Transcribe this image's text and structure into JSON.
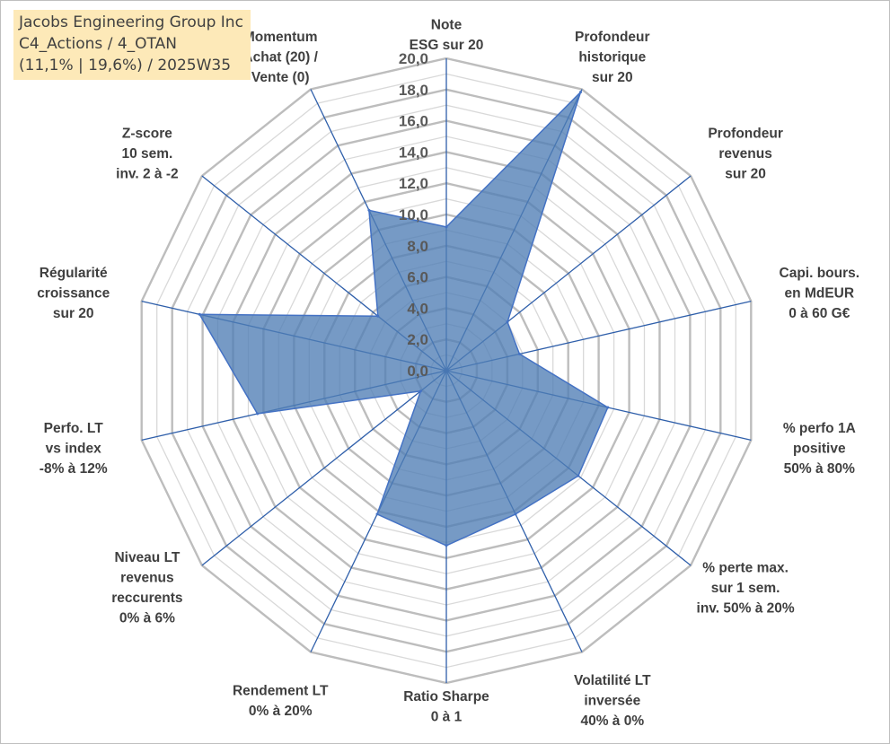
{
  "title_box": {
    "line1": "Jacobs Engineering Group Inc",
    "line2": "C4_Actions / 4_OTAN",
    "line3": "(11,1% | 19,6%) / 2025W35"
  },
  "colors": {
    "series_fill": "#4f7db5",
    "series_stroke": "#4472c4",
    "spoke": "#2f5faa",
    "ring_major": "#bdbdbd",
    "ring_minor": "#d9d9d9",
    "tick_text": "#595959",
    "label_text": "#3f3f3f",
    "title_bg": "#fde9b8"
  },
  "chart_data": {
    "type": "radar",
    "rmin": 0,
    "rmax": 20,
    "major_step": 2,
    "minor_step": 1,
    "tick_labels": [
      "0,0",
      "2,0",
      "4,0",
      "6,0",
      "8,0",
      "10,0",
      "12,0",
      "14,0",
      "16,0",
      "18,0",
      "20,0"
    ],
    "axes": [
      {
        "label": [
          "Note",
          "ESG sur 20"
        ],
        "value": 9.2
      },
      {
        "label": [
          "Profondeur",
          "historique",
          "sur 20"
        ],
        "value": 19.8
      },
      {
        "label": [
          "Profondeur",
          "revenus",
          "sur 20"
        ],
        "value": 5.0
      },
      {
        "label": [
          "Capi. bours.",
          "en MdEUR",
          "0 à 60 G€"
        ],
        "value": 4.8
      },
      {
        "label": [
          "% perfo 1A",
          "positive",
          "50% à 80%"
        ],
        "value": 10.6
      },
      {
        "label": [
          "% perte max.",
          "sur 1 sem.",
          "inv. 50% à 20%"
        ],
        "value": 10.8
      },
      {
        "label": [
          "Volatilité LT",
          "inversée",
          "40% à 0%"
        ],
        "value": 10.2
      },
      {
        "label": [
          "Ratio Sharpe",
          "0 à 1"
        ],
        "value": 11.2
      },
      {
        "label": [
          "Rendement LT",
          "0% à 20%"
        ],
        "value": 10.2
      },
      {
        "label": [
          "Niveau LT",
          "revenus",
          "reccurents",
          "0% à 6%"
        ],
        "value": 2.1
      },
      {
        "label": [
          "Perfo. LT",
          "vs index",
          "-8% à 12%"
        ],
        "value": 12.4
      },
      {
        "label": [
          "Régularité",
          "croissance",
          "sur 20"
        ],
        "value": 16.2
      },
      {
        "label": [
          "Z-score",
          "10 sem.",
          "inv. 2 à -2"
        ],
        "value": 5.6
      },
      {
        "label": [
          "Momentum",
          "Achat (20) /",
          "Vente (0)"
        ],
        "value": 11.4
      }
    ]
  }
}
